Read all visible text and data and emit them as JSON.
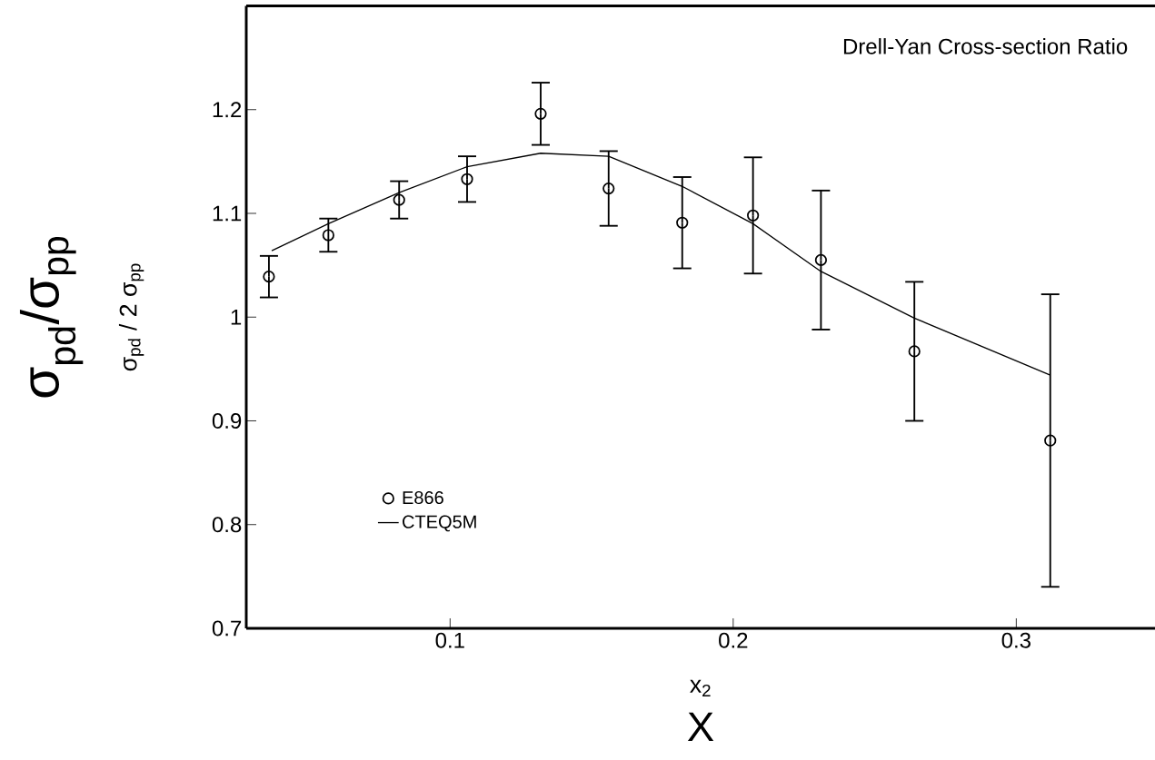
{
  "chart_data": {
    "type": "scatter",
    "title": "Drell-Yan Cross-section Ratio",
    "xlabel": "x$_{2}$",
    "ylabel": "σ$_{pd}$/σ$_{pp}$",
    "annotations": [
      "σ$_{pd}$ / 2 σ$_{pp}$",
      "X"
    ],
    "xlim": [
      0.028,
      0.349
    ],
    "ylim": [
      0.7,
      1.3
    ],
    "xticks": [
      0.1,
      0.2,
      0.3
    ],
    "yticks": [
      0.7,
      0.8,
      0.9,
      1,
      1.1,
      1.2
    ],
    "legend": "bottom left",
    "marker": "circle",
    "series": [
      {
        "name": "E866",
        "color": "#000000",
        "x": [
          0.036,
          0.057,
          0.082,
          0.106,
          0.132,
          0.156,
          0.182,
          0.207,
          0.231,
          0.264,
          0.312
        ],
        "values": [
          1.039,
          1.079,
          1.113,
          1.133,
          1.196,
          1.124,
          1.091,
          1.098,
          1.055,
          0.967,
          0.881
        ],
        "errors": [
          0.02,
          0.016,
          0.018,
          0.022,
          0.03,
          0.036,
          0.044,
          0.056,
          0.067,
          0.067,
          0.141
        ]
      },
      {
        "name": "CTEQ5M",
        "type": "line",
        "marker": "none",
        "color": "#000000",
        "x": [
          0.037,
          0.057,
          0.082,
          0.106,
          0.132,
          0.156,
          0.182,
          0.207,
          0.231,
          0.264,
          0.312
        ],
        "values": [
          1.064,
          1.09,
          1.12,
          1.145,
          1.158,
          1.155,
          1.126,
          1.09,
          1.044,
          0.999,
          0.944
        ]
      }
    ]
  }
}
